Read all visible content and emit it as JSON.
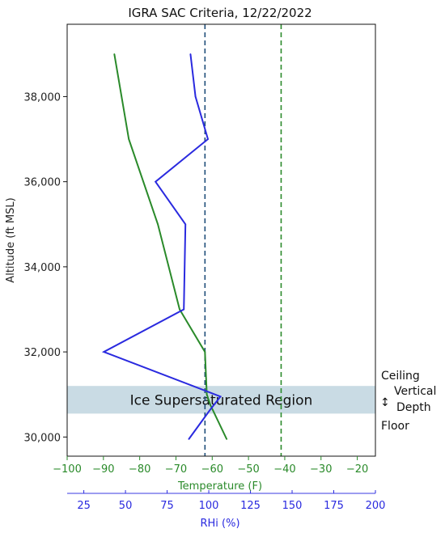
{
  "chart_data": {
    "type": "line",
    "title": "IGRA SAC Criteria, 12/22/2022",
    "ylabel": "Altitude (ft MSL)",
    "xlabel_temperature": "Temperature (F)",
    "xlabel_rhi": "RHi (%)",
    "ylim": [
      29550,
      39700
    ],
    "y_ticks": [
      {
        "value": 30000,
        "label": "30,000"
      },
      {
        "value": 32000,
        "label": "32,000"
      },
      {
        "value": 34000,
        "label": "34,000"
      },
      {
        "value": 36000,
        "label": "36,000"
      },
      {
        "value": 38000,
        "label": "38,000"
      }
    ],
    "temperature_axis": {
      "range": [
        -100,
        -15
      ],
      "ticks": [
        {
          "value": -100,
          "label": "−100"
        },
        {
          "value": -90,
          "label": "−90"
        },
        {
          "value": -80,
          "label": "−80"
        },
        {
          "value": -70,
          "label": "−70"
        },
        {
          "value": -60,
          "label": "−60"
        },
        {
          "value": -50,
          "label": "−50"
        },
        {
          "value": -40,
          "label": "−40"
        },
        {
          "value": -30,
          "label": "−30"
        },
        {
          "value": -20,
          "label": "−20"
        }
      ],
      "color": "#2a8a2a"
    },
    "rhi_axis": {
      "range": [
        15,
        200
      ],
      "ticks": [
        {
          "value": 25,
          "label": "25"
        },
        {
          "value": 50,
          "label": "50"
        },
        {
          "value": 75,
          "label": "75"
        },
        {
          "value": 100,
          "label": "100"
        },
        {
          "value": 125,
          "label": "125"
        },
        {
          "value": 150,
          "label": "150"
        },
        {
          "value": 175,
          "label": "175"
        },
        {
          "value": 200,
          "label": "200"
        }
      ],
      "color": "#2a2adf"
    },
    "series": [
      {
        "axis": "temperature",
        "color": "#2a8a2a",
        "points": [
          {
            "x": -87,
            "y": 39000
          },
          {
            "x": -83,
            "y": 37000
          },
          {
            "x": -75,
            "y": 35000
          },
          {
            "x": -69,
            "y": 33000
          },
          {
            "x": -62,
            "y": 32000
          },
          {
            "x": -61.5,
            "y": 31000
          },
          {
            "x": -60.5,
            "y": 30750
          },
          {
            "x": -56,
            "y": 29950
          }
        ]
      },
      {
        "axis": "rhi",
        "color": "#2a2adf",
        "points": [
          {
            "x": 89,
            "y": 39000
          },
          {
            "x": 92,
            "y": 38000
          },
          {
            "x": 99.5,
            "y": 37000
          },
          {
            "x": 68,
            "y": 36000
          },
          {
            "x": 86,
            "y": 35000
          },
          {
            "x": 85,
            "y": 33000
          },
          {
            "x": 37,
            "y": 32000
          },
          {
            "x": 107,
            "y": 30950
          },
          {
            "x": 101,
            "y": 30650
          },
          {
            "x": 88,
            "y": 29950
          }
        ]
      }
    ],
    "reference_lines": [
      {
        "axis": "temperature",
        "value": -62,
        "color": "#1f4e79",
        "style": "dashed"
      },
      {
        "axis": "temperature",
        "value": -41,
        "color": "#2a8a2a",
        "style": "dashed"
      }
    ],
    "shaded_region": {
      "label": "Ice Supersaturated Region",
      "y_from": 30550,
      "y_to": 31200,
      "color": "#c9dbe4"
    },
    "annotations": {
      "ceiling": "Ceiling",
      "vertical": "Vertical",
      "depth": "Depth",
      "floor": "Floor",
      "arrow": "↕"
    }
  }
}
